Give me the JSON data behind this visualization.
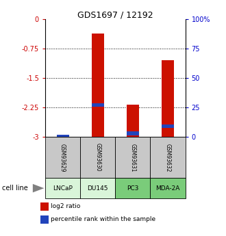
{
  "title": "GDS1697 / 12192",
  "samples": [
    "GSM93629",
    "GSM93630",
    "GSM93631",
    "GSM93632"
  ],
  "cell_lines": [
    "LNCaP",
    "DU145",
    "PC3",
    "MDA-2A"
  ],
  "cell_line_colors": [
    "#d9f5d9",
    "#d9f5d9",
    "#7acc7a",
    "#7acc7a"
  ],
  "log2_ratio": [
    -2.98,
    -0.37,
    -2.18,
    -1.05
  ],
  "percentile_rank_val": [
    0.5,
    27.0,
    3.0,
    9.0
  ],
  "y_min": -3.0,
  "y_max": 0.0,
  "y_ticks_left": [
    0,
    -0.75,
    -1.5,
    -2.25,
    -3
  ],
  "y_tick_labels_left": [
    "0",
    "-0.75",
    "-1.5",
    "-2.25",
    "-3"
  ],
  "y_ticks_right_vals": [
    0,
    -0.75,
    -1.5,
    -2.25,
    -3
  ],
  "y_ticks_right_labels": [
    "100%",
    "75",
    "50",
    "25",
    "0"
  ],
  "bar_color_red": "#cc1100",
  "bar_color_blue": "#2244bb",
  "label_color_left": "#cc0000",
  "label_color_right": "#0000cc",
  "bar_width": 0.35,
  "gsm_box_color": "#c8c8c8",
  "cell_line_label": "cell line"
}
